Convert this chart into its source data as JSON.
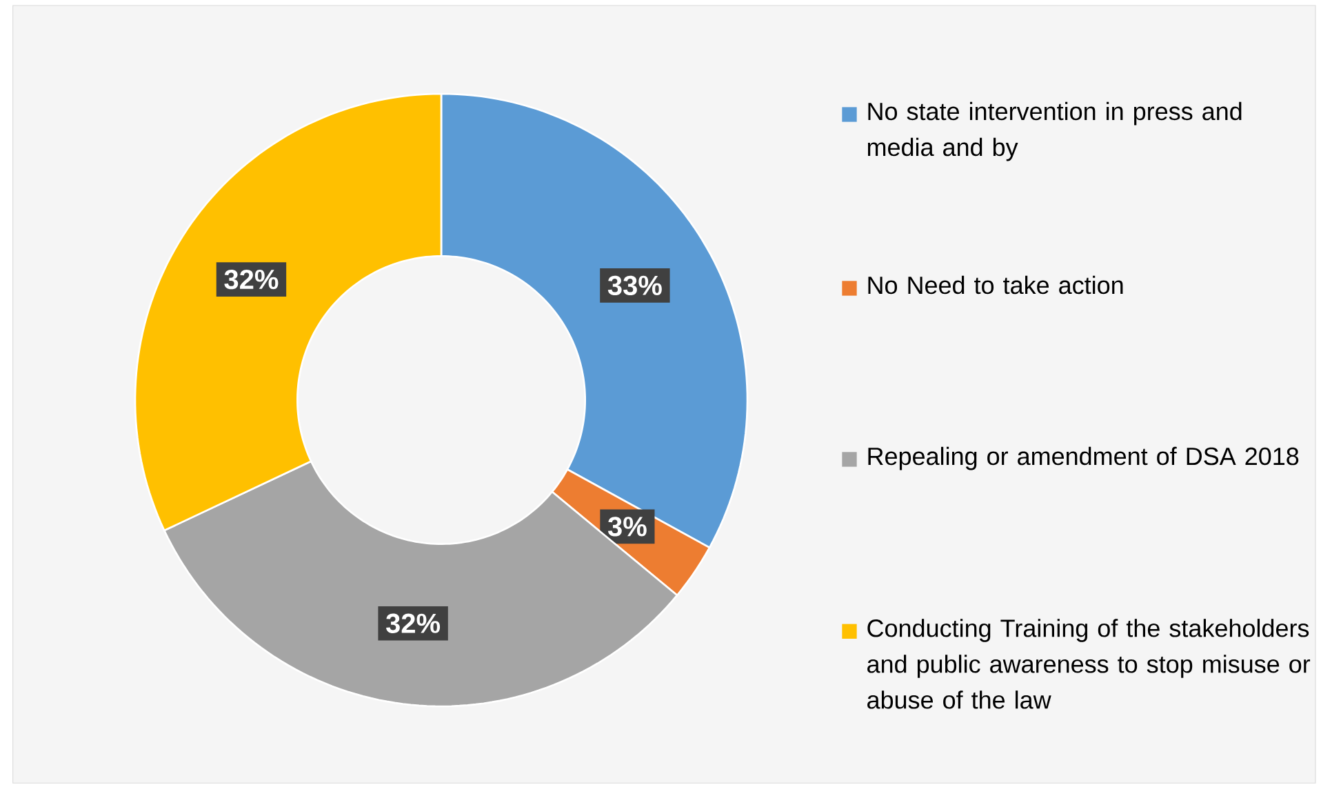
{
  "chart_data": {
    "type": "donut",
    "categories": [
      "No state intervention in press and media and by",
      "No Need to take action",
      "Repealing or amendment of DSA 2018",
      "Conducting Training of the stakeholders and public awareness to stop misuse or abuse of the law"
    ],
    "values": [
      33,
      3,
      32,
      32
    ],
    "colors": [
      "#5b9bd5",
      "#ed7d31",
      "#a5a5a5",
      "#ffc000"
    ],
    "value_labels": [
      "33%",
      "3%",
      "32%",
      "32%"
    ],
    "legend": "right"
  }
}
